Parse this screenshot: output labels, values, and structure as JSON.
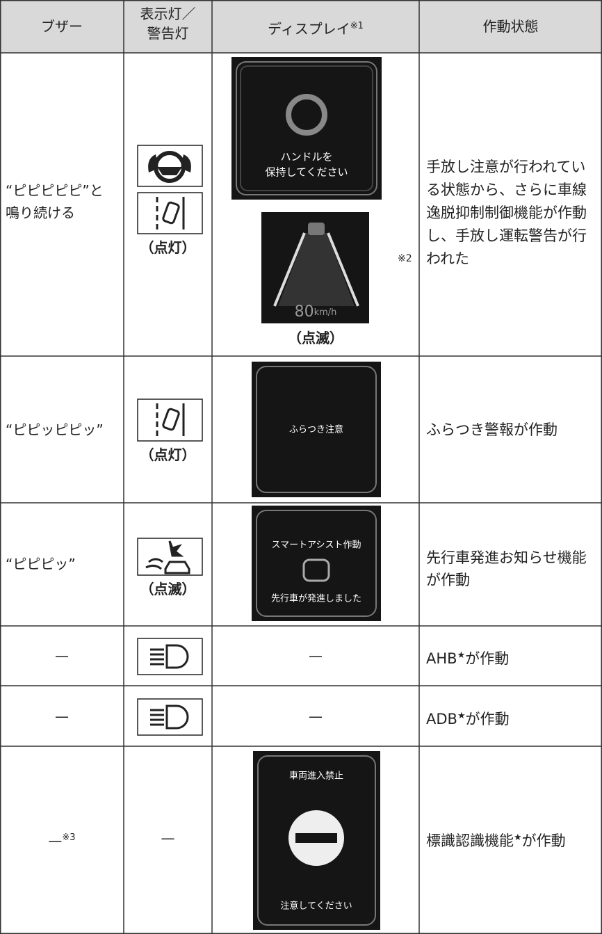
{
  "table": {
    "headers": {
      "buzzer": "ブザー",
      "indicator": [
        "表示灯／",
        "警告灯"
      ],
      "display": "ディスプレイ",
      "display_note": "※1",
      "state": "作動状態"
    },
    "rows": [
      {
        "buzzer": "“ピピピピピ”と鳴り続ける",
        "indicator_label": "（点灯）",
        "screen_texts": [
          "ハンドルを",
          "保持してください"
        ],
        "screen2_speed": "80",
        "screen2_unit": "km/h",
        "display_label": "（点滅）",
        "display_note": "※2",
        "state": "手放し注意が行われている状態から、さらに車線逸脱抑制制御機能が作動し、手放し運転警告が行われた"
      },
      {
        "buzzer": "“ピピッピピッ”",
        "indicator_label": "（点灯）",
        "screen_texts": [
          "ふらつき注意"
        ],
        "state": "ふらつき警報が作動"
      },
      {
        "buzzer": "“ピピピッ”",
        "indicator_label": "（点滅）",
        "screen_texts": [
          "スマートアシスト作動",
          "先行車が発進しました"
        ],
        "state": "先行車発進お知らせ機能が作動"
      },
      {
        "buzzer": "—",
        "display": "—",
        "state": "AHB",
        "state_mark": "★",
        "state_after": "が作動"
      },
      {
        "buzzer": "—",
        "display": "—",
        "state": "ADB",
        "state_mark": "★",
        "state_after": "が作動"
      },
      {
        "buzzer": "—",
        "buzzer_note": "※3",
        "indicator": "—",
        "screen_texts": [
          "車両進入禁止",
          "注意してください"
        ],
        "state": "標識認識機能",
        "state_mark": "★",
        "state_after": "が作動"
      }
    ]
  }
}
